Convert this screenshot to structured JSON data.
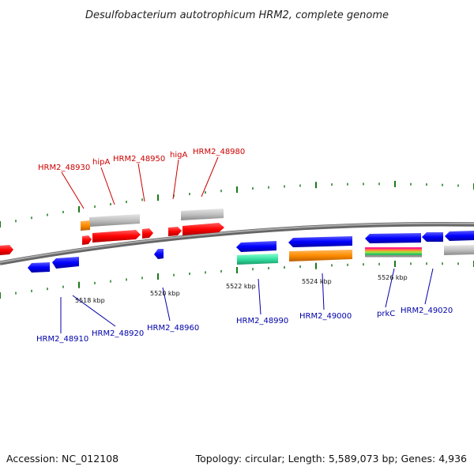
{
  "title": "Desulfobacterium autotrophicum HRM2, complete genome",
  "footer": {
    "accession": "Accession: NC_012108",
    "summary": "Topology: circular; Length: 5,589,073 bp; Genes: 4,936"
  },
  "colors": {
    "forward_gene": "#ff0000",
    "reverse_gene": "#0000ff",
    "forward_label": "#cc0000",
    "reverse_label": "#0000aa",
    "backbone": "#8c8c8c",
    "tick": "#1a7a1a",
    "pseudo": "#c0c0c0",
    "orange": "#ff8c00",
    "teal": "#33e0a0"
  },
  "scale_labels": [
    "5518 kbp",
    "5520 kbp",
    "5522 kbp",
    "5524 kbp",
    "5526 kbp"
  ],
  "top_labels": [
    "HRM2_48930",
    "hipA",
    "HRM2_48950",
    "higA",
    "HRM2_48980"
  ],
  "bottom_labels": [
    "HRM2_48910",
    "HRM2_48920",
    "HRM2_48960",
    "HRM2_48990",
    "HRM2_49000",
    "prkC",
    "HRM2_49020"
  ]
}
